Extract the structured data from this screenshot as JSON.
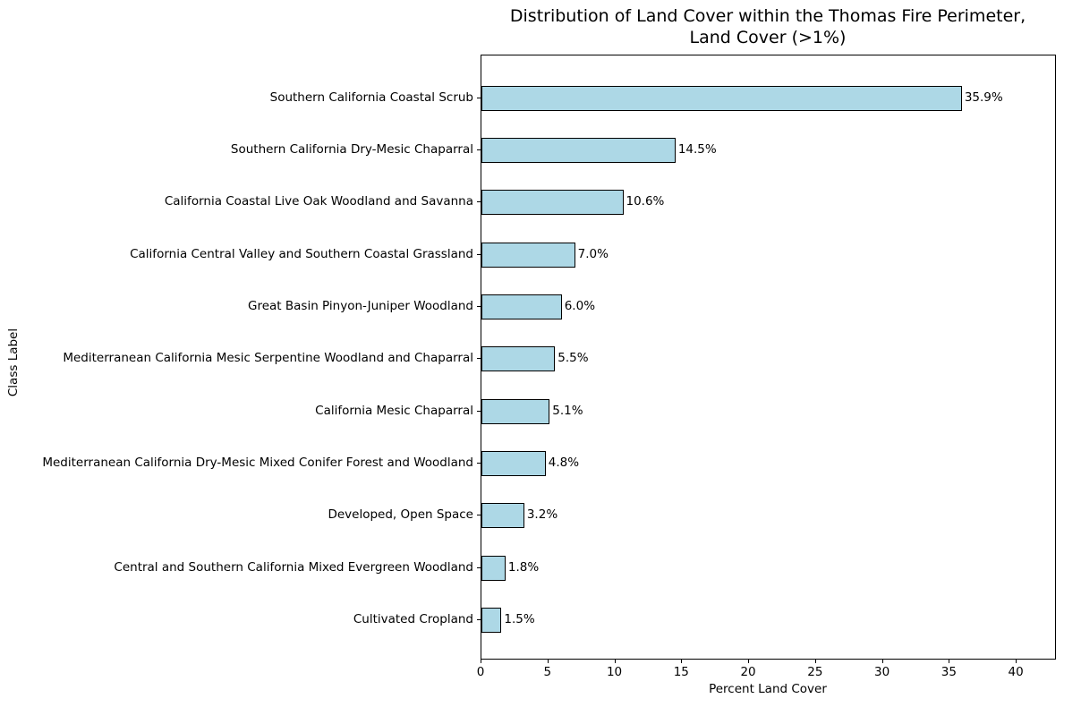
{
  "title": "Distribution of Land Cover within the Thomas Fire Perimeter,\nLand Cover (>1%)",
  "chart_data": {
    "type": "bar",
    "orientation": "horizontal",
    "title": "Distribution of Land Cover within the Thomas Fire Perimeter, Land Cover (>1%)",
    "xlabel": "Percent Land Cover",
    "ylabel": "Class Label",
    "categories": [
      "Southern California Coastal Scrub",
      "Southern California Dry-Mesic Chaparral",
      "California Coastal Live Oak Woodland and Savanna",
      "California Central Valley and Southern Coastal Grassland",
      "Great Basin Pinyon-Juniper Woodland",
      "Mediterranean California Mesic Serpentine Woodland and Chaparral",
      "California Mesic Chaparral",
      "Mediterranean California Dry-Mesic Mixed Conifer Forest and Woodland",
      "Developed, Open Space",
      "Central and Southern California Mixed Evergreen Woodland",
      "Cultivated Cropland"
    ],
    "values": [
      35.9,
      14.5,
      10.6,
      7.0,
      6.0,
      5.5,
      5.1,
      4.8,
      3.2,
      1.8,
      1.5
    ],
    "value_labels": [
      "35.9%",
      "14.5%",
      "10.6%",
      "7.0%",
      "6.0%",
      "5.5%",
      "5.1%",
      "4.8%",
      "3.2%",
      "1.8%",
      "1.5%"
    ],
    "xticks": [
      0,
      5,
      10,
      15,
      20,
      25,
      30,
      35,
      40
    ],
    "xlim": [
      0,
      43
    ],
    "grid": false,
    "legend_position": "none",
    "bar_color": "#ADD8E6",
    "bar_edge_color": "#000000",
    "text_color": "#000000"
  }
}
